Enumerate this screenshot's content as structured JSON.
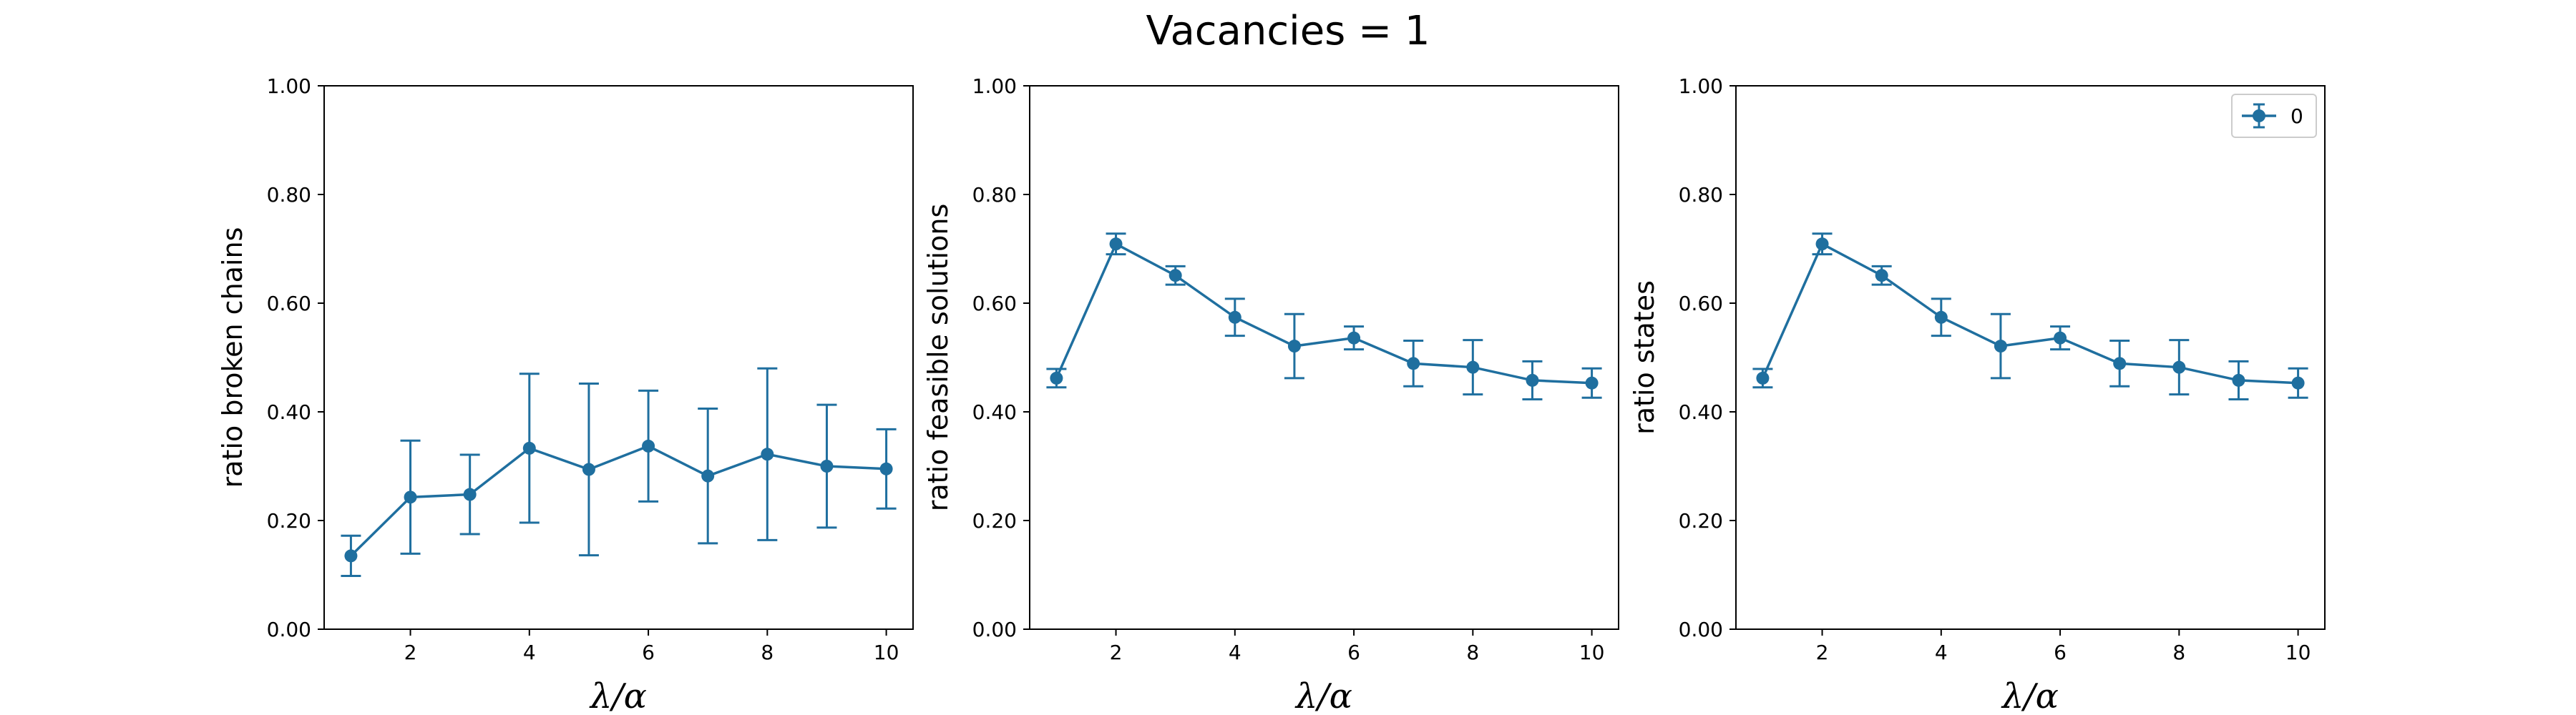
{
  "figure": {
    "title": "Vacancies = 1",
    "series_color": "#1f6f9f"
  },
  "chart_data": [
    {
      "type": "line",
      "title": "",
      "xlabel": "λ/α",
      "ylabel": "ratio broken chains",
      "xlim": [
        0.55,
        10.45
      ],
      "ylim": [
        0,
        1
      ],
      "xticks": [
        2,
        4,
        6,
        8,
        10
      ],
      "yticks": [
        0.0,
        0.2,
        0.4,
        0.6,
        0.8,
        1.0
      ],
      "ytick_format": "fixed2",
      "legend": null,
      "series": [
        {
          "name": "0",
          "x": [
            1,
            2,
            3,
            4,
            5,
            6,
            7,
            8,
            9,
            10
          ],
          "y": [
            0.135,
            0.243,
            0.248,
            0.333,
            0.294,
            0.337,
            0.282,
            0.322,
            0.3,
            0.295
          ],
          "yerr": [
            0.037,
            0.104,
            0.073,
            0.137,
            0.158,
            0.102,
            0.124,
            0.158,
            0.113,
            0.073
          ]
        }
      ]
    },
    {
      "type": "line",
      "title": "",
      "xlabel": "λ/α",
      "ylabel": "ratio feasible solutions",
      "xlim": [
        0.55,
        10.45
      ],
      "ylim": [
        0,
        1
      ],
      "xticks": [
        2,
        4,
        6,
        8,
        10
      ],
      "yticks": [
        0.0,
        0.2,
        0.4,
        0.6,
        0.8,
        1.0
      ],
      "ytick_format": "fixed2",
      "legend": null,
      "series": [
        {
          "name": "0",
          "x": [
            1,
            2,
            3,
            4,
            5,
            6,
            7,
            8,
            9,
            10
          ],
          "y": [
            0.462,
            0.709,
            0.651,
            0.574,
            0.521,
            0.536,
            0.489,
            0.482,
            0.458,
            0.453
          ],
          "yerr": [
            0.017,
            0.019,
            0.017,
            0.034,
            0.059,
            0.021,
            0.042,
            0.05,
            0.035,
            0.027
          ]
        }
      ]
    },
    {
      "type": "line",
      "title": "",
      "xlabel": "λ/α",
      "ylabel": "ratio states",
      "xlim": [
        0.55,
        10.45
      ],
      "ylim": [
        0,
        1
      ],
      "xticks": [
        2,
        4,
        6,
        8,
        10
      ],
      "yticks": [
        0.0,
        0.2,
        0.4,
        0.6,
        0.8,
        1.0
      ],
      "ytick_format": "fixed2",
      "legend": "top-right",
      "series": [
        {
          "name": "0",
          "x": [
            1,
            2,
            3,
            4,
            5,
            6,
            7,
            8,
            9,
            10
          ],
          "y": [
            0.462,
            0.709,
            0.651,
            0.574,
            0.521,
            0.536,
            0.489,
            0.482,
            0.458,
            0.453
          ],
          "yerr": [
            0.017,
            0.019,
            0.017,
            0.034,
            0.059,
            0.021,
            0.042,
            0.05,
            0.035,
            0.027
          ]
        }
      ]
    }
  ]
}
